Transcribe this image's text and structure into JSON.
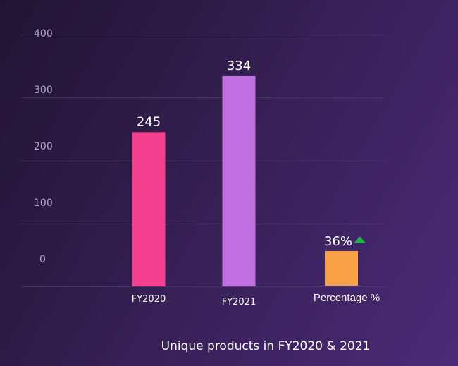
{
  "chart_data": {
    "type": "bar",
    "title": "Unique products in FY2020 & 2021",
    "categories": [
      "FY2020",
      "FY2021"
    ],
    "values": [
      245,
      334
    ],
    "value_labels": [
      "245",
      "334"
    ],
    "y_ticks": [
      "400",
      "300",
      "200",
      "100",
      "0"
    ],
    "ylim": [
      0,
      400
    ],
    "grid": true,
    "colors": [
      "#f43f8e",
      "#c06ee0"
    ],
    "percentage": {
      "label": "Percentage %",
      "value_text": "36%",
      "direction": "up",
      "color": "#f9a146",
      "arrow_color": "#22b14c",
      "icon": "triangle-up-icon"
    }
  }
}
